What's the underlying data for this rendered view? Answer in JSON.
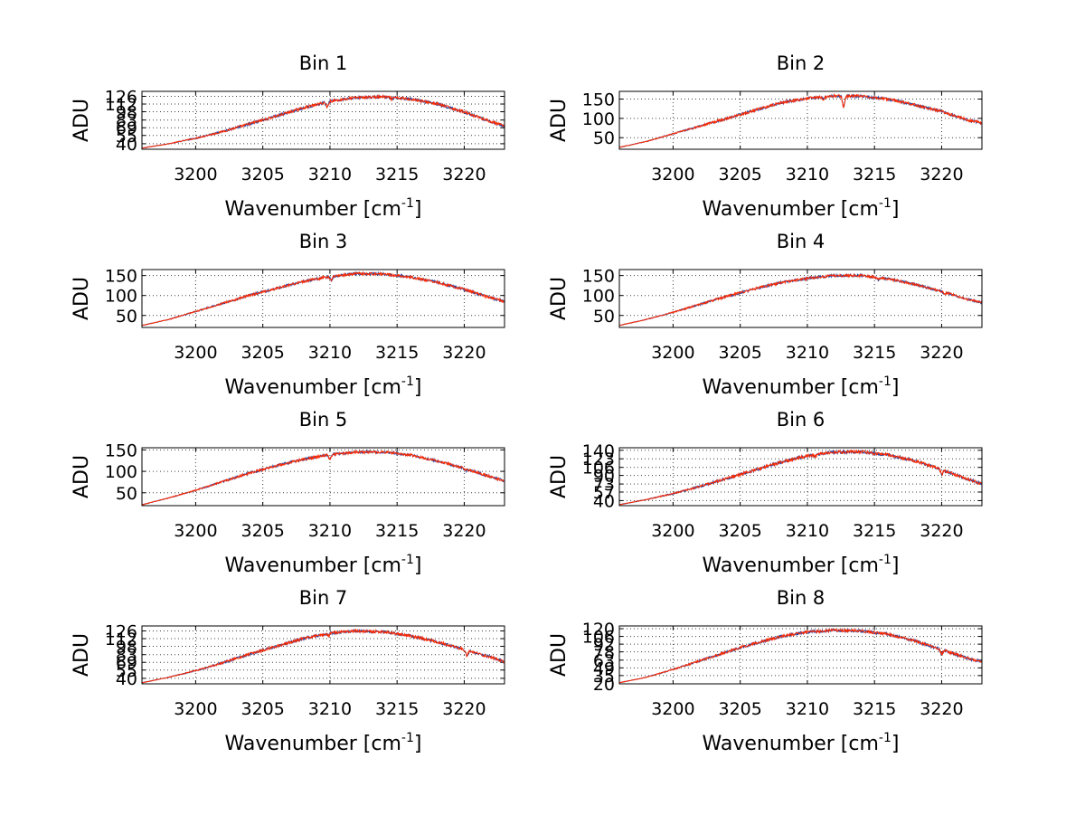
{
  "colors": {
    "series_primary": "#ff2a00",
    "series_secondary": "#1f3f9f",
    "axis": "#000000",
    "background": "#ffffff"
  },
  "chart_data": [
    {
      "type": "line",
      "title": "Bin 1",
      "xlabel": "Wavenumber [cm",
      "xlabel_sup": "-1",
      "xlabel_close": "]",
      "ylabel": "ADU",
      "xlim": [
        3196,
        3223
      ],
      "ylim": [
        30,
        135
      ],
      "grid": true,
      "xticks": [
        3200,
        3205,
        3210,
        3215,
        3220
      ],
      "yticks": [
        40,
        55,
        69,
        83,
        98,
        112,
        126
      ],
      "yticklabels": [
        "40",
        "55",
        "69",
        "83",
        "98",
        "112",
        "126"
      ],
      "profile": [
        [
          3196,
          32
        ],
        [
          3198,
          40
        ],
        [
          3200,
          50
        ],
        [
          3202,
          62
        ],
        [
          3204,
          76
        ],
        [
          3206,
          90
        ],
        [
          3208,
          105
        ],
        [
          3210,
          117
        ],
        [
          3212,
          124
        ],
        [
          3214,
          125
        ],
        [
          3216,
          121
        ],
        [
          3218,
          112
        ],
        [
          3220,
          98
        ],
        [
          3222,
          80
        ],
        [
          3223,
          72
        ]
      ],
      "dips": [
        [
          3209.8,
          9
        ],
        [
          3214.6,
          3
        ]
      ],
      "noise": 2.5
    },
    {
      "type": "line",
      "title": "Bin 2",
      "xlabel": "Wavenumber [cm",
      "xlabel_sup": "-1",
      "xlabel_close": "]",
      "ylabel": "ADU",
      "xlim": [
        3196,
        3223
      ],
      "ylim": [
        20,
        170
      ],
      "grid": true,
      "xticks": [
        3200,
        3205,
        3210,
        3215,
        3220
      ],
      "yticks": [
        50,
        100,
        150
      ],
      "yticklabels": [
        "50",
        "100",
        "150"
      ],
      "profile": [
        [
          3196,
          25
        ],
        [
          3198,
          40
        ],
        [
          3200,
          60
        ],
        [
          3202,
          80
        ],
        [
          3204,
          100
        ],
        [
          3206,
          120
        ],
        [
          3208,
          140
        ],
        [
          3210,
          152
        ],
        [
          3212,
          158
        ],
        [
          3214,
          158
        ],
        [
          3216,
          150
        ],
        [
          3218,
          135
        ],
        [
          3220,
          118
        ],
        [
          3222,
          95
        ],
        [
          3223,
          88
        ]
      ],
      "dips": [
        [
          3212.7,
          28
        ],
        [
          3211.2,
          6
        ]
      ],
      "noise": 3.5
    },
    {
      "type": "line",
      "title": "Bin 3",
      "xlabel": "Wavenumber [cm",
      "xlabel_sup": "-1",
      "xlabel_close": "]",
      "ylabel": "ADU",
      "xlim": [
        3196,
        3223
      ],
      "ylim": [
        20,
        165
      ],
      "grid": true,
      "xticks": [
        3200,
        3205,
        3210,
        3215,
        3220
      ],
      "yticks": [
        50,
        100,
        150
      ],
      "yticklabels": [
        "50",
        "100",
        "150"
      ],
      "profile": [
        [
          3196,
          25
        ],
        [
          3198,
          40
        ],
        [
          3200,
          60
        ],
        [
          3202,
          80
        ],
        [
          3204,
          100
        ],
        [
          3206,
          118
        ],
        [
          3208,
          135
        ],
        [
          3210,
          148
        ],
        [
          3212,
          155
        ],
        [
          3214,
          154
        ],
        [
          3216,
          146
        ],
        [
          3218,
          133
        ],
        [
          3220,
          115
        ],
        [
          3222,
          94
        ],
        [
          3223,
          85
        ]
      ],
      "dips": [
        [
          3210.1,
          10
        ]
      ],
      "noise": 3.2
    },
    {
      "type": "line",
      "title": "Bin 4",
      "xlabel": "Wavenumber [cm",
      "xlabel_sup": "-1",
      "xlabel_close": "]",
      "ylabel": "ADU",
      "xlim": [
        3196,
        3223
      ],
      "ylim": [
        20,
        165
      ],
      "grid": true,
      "xticks": [
        3200,
        3205,
        3210,
        3215,
        3220
      ],
      "yticks": [
        50,
        100,
        150
      ],
      "yticklabels": [
        "50",
        "100",
        "150"
      ],
      "profile": [
        [
          3196,
          25
        ],
        [
          3198,
          40
        ],
        [
          3200,
          58
        ],
        [
          3202,
          78
        ],
        [
          3204,
          98
        ],
        [
          3206,
          116
        ],
        [
          3208,
          132
        ],
        [
          3210,
          143
        ],
        [
          3212,
          150
        ],
        [
          3214,
          150
        ],
        [
          3216,
          142
        ],
        [
          3218,
          128
        ],
        [
          3220,
          110
        ],
        [
          3222,
          90
        ],
        [
          3223,
          82
        ]
      ],
      "dips": [
        [
          3215.3,
          5
        ],
        [
          3220.2,
          4
        ]
      ],
      "noise": 3.2
    },
    {
      "type": "line",
      "title": "Bin 5",
      "xlabel": "Wavenumber [cm",
      "xlabel_sup": "-1",
      "xlabel_close": "]",
      "ylabel": "ADU",
      "xlim": [
        3196,
        3223
      ],
      "ylim": [
        20,
        155
      ],
      "grid": true,
      "xticks": [
        3200,
        3205,
        3210,
        3215,
        3220
      ],
      "yticks": [
        50,
        100,
        150
      ],
      "yticklabels": [
        "50",
        "100",
        "150"
      ],
      "profile": [
        [
          3196,
          22
        ],
        [
          3198,
          38
        ],
        [
          3200,
          56
        ],
        [
          3202,
          76
        ],
        [
          3204,
          96
        ],
        [
          3206,
          113
        ],
        [
          3208,
          128
        ],
        [
          3210,
          139
        ],
        [
          3212,
          145
        ],
        [
          3214,
          145
        ],
        [
          3216,
          138
        ],
        [
          3218,
          124
        ],
        [
          3220,
          107
        ],
        [
          3222,
          87
        ],
        [
          3223,
          78
        ]
      ],
      "dips": [
        [
          3210.0,
          10
        ],
        [
          3220.1,
          4
        ]
      ],
      "noise": 3.0
    },
    {
      "type": "line",
      "title": "Bin 6",
      "xlabel": "Wavenumber [cm",
      "xlabel_sup": "-1",
      "xlabel_close": "]",
      "ylabel": "ADU",
      "xlim": [
        3196,
        3223
      ],
      "ylim": [
        30,
        145
      ],
      "grid": true,
      "xticks": [
        3200,
        3205,
        3210,
        3215,
        3220
      ],
      "yticks": [
        40,
        57,
        73,
        90,
        106,
        123,
        140
      ],
      "yticklabels": [
        "40",
        "57",
        "73",
        "90",
        "106",
        "123",
        "140"
      ],
      "profile": [
        [
          3196,
          32
        ],
        [
          3198,
          42
        ],
        [
          3200,
          54
        ],
        [
          3202,
          68
        ],
        [
          3204,
          84
        ],
        [
          3206,
          100
        ],
        [
          3208,
          116
        ],
        [
          3210,
          129
        ],
        [
          3212,
          136
        ],
        [
          3214,
          137
        ],
        [
          3216,
          131
        ],
        [
          3218,
          119
        ],
        [
          3220,
          102
        ],
        [
          3222,
          82
        ],
        [
          3223,
          73
        ]
      ],
      "dips": [
        [
          3220.0,
          10
        ],
        [
          3210.6,
          4
        ]
      ],
      "noise": 3.0
    },
    {
      "type": "line",
      "title": "Bin 7",
      "xlabel": "Wavenumber [cm",
      "xlabel_sup": "-1",
      "xlabel_close": "]",
      "ylabel": "ADU",
      "xlim": [
        3196,
        3223
      ],
      "ylim": [
        30,
        135
      ],
      "grid": true,
      "xticks": [
        3200,
        3205,
        3210,
        3215,
        3220
      ],
      "yticks": [
        40,
        55,
        69,
        83,
        98,
        112,
        126
      ],
      "yticklabels": [
        "40",
        "55",
        "69",
        "83",
        "98",
        "112",
        "126"
      ],
      "profile": [
        [
          3196,
          32
        ],
        [
          3198,
          42
        ],
        [
          3200,
          54
        ],
        [
          3202,
          68
        ],
        [
          3204,
          84
        ],
        [
          3206,
          98
        ],
        [
          3208,
          112
        ],
        [
          3210,
          122
        ],
        [
          3212,
          126
        ],
        [
          3214,
          124
        ],
        [
          3216,
          117
        ],
        [
          3218,
          106
        ],
        [
          3220,
          92
        ],
        [
          3222,
          78
        ],
        [
          3223,
          70
        ]
      ],
      "dips": [
        [
          3220.2,
          10
        ],
        [
          3209.9,
          4
        ]
      ],
      "noise": 2.5
    },
    {
      "type": "line",
      "title": "Bin 8",
      "xlabel": "Wavenumber [cm",
      "xlabel_sup": "-1",
      "xlabel_close": "]",
      "ylabel": "ADU",
      "xlim": [
        3196,
        3223
      ],
      "ylim": [
        20,
        125
      ],
      "grid": true,
      "xticks": [
        3200,
        3205,
        3210,
        3215,
        3220
      ],
      "yticks": [
        20,
        35,
        49,
        63,
        78,
        92,
        106,
        120
      ],
      "yticklabels": [
        "20",
        "35",
        "49",
        "63",
        "78",
        "92",
        "106",
        "120"
      ],
      "profile": [
        [
          3196,
          22
        ],
        [
          3198,
          32
        ],
        [
          3200,
          46
        ],
        [
          3202,
          62
        ],
        [
          3204,
          78
        ],
        [
          3206,
          93
        ],
        [
          3208,
          106
        ],
        [
          3210,
          114
        ],
        [
          3212,
          117
        ],
        [
          3214,
          116
        ],
        [
          3216,
          110
        ],
        [
          3218,
          98
        ],
        [
          3220,
          82
        ],
        [
          3222,
          66
        ],
        [
          3223,
          60
        ]
      ],
      "dips": [
        [
          3220.0,
          8
        ]
      ],
      "noise": 2.5
    }
  ]
}
